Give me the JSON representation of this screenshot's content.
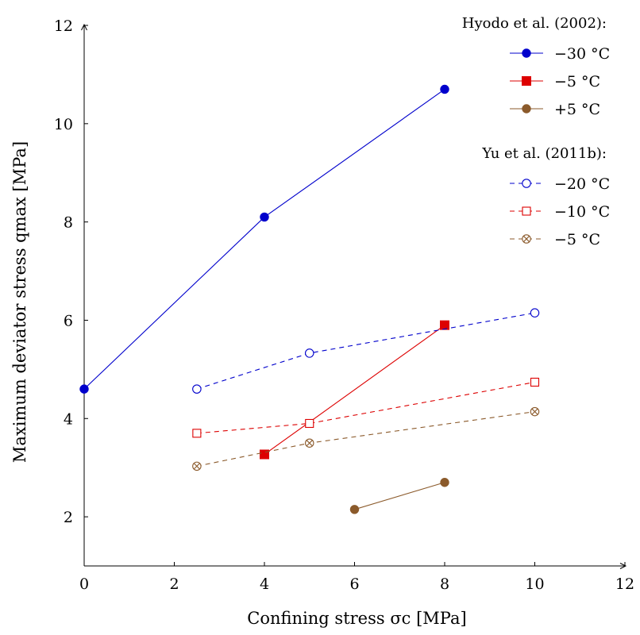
{
  "chart_data": {
    "type": "line",
    "xlabel": "Confining stress σc [MPa]",
    "ylabel": "Maximum deviator stress qmax [MPa]",
    "xlim": [
      0,
      12
    ],
    "ylim": [
      1,
      12
    ],
    "x_ticks": [
      "0",
      "2",
      "4",
      "6",
      "8",
      "10",
      "12"
    ],
    "y_ticks": [
      "2",
      "4",
      "6",
      "8",
      "10",
      "12"
    ],
    "grid": false,
    "legend_position": "top-right",
    "legend_groups": [
      {
        "title": "Hyodo et al. (2002):",
        "series": [
          0,
          1,
          2
        ]
      },
      {
        "title": "Yu et al. (2011b):",
        "series": [
          3,
          4,
          5
        ]
      }
    ],
    "series": [
      {
        "name": "−30 °C",
        "color": "#0000cc",
        "dashed": false,
        "marker": "filled-circle",
        "x": [
          0,
          4,
          8
        ],
        "y": [
          4.6,
          8.1,
          10.7
        ]
      },
      {
        "name": "−5 °C",
        "color": "#dd0000",
        "dashed": false,
        "marker": "filled-square",
        "x": [
          4,
          8
        ],
        "y": [
          3.27,
          5.9
        ]
      },
      {
        "name": "+5 °C",
        "color": "#8b5a2b",
        "dashed": false,
        "marker": "filled-circle",
        "x": [
          6,
          8
        ],
        "y": [
          2.15,
          2.7
        ]
      },
      {
        "name": "−20 °C",
        "color": "#0000cc",
        "dashed": true,
        "marker": "open-circle",
        "x": [
          2.5,
          5,
          10
        ],
        "y": [
          4.6,
          5.33,
          6.15
        ]
      },
      {
        "name": "−10 °C",
        "color": "#dd0000",
        "dashed": true,
        "marker": "open-square",
        "x": [
          2.5,
          5,
          10
        ],
        "y": [
          3.7,
          3.9,
          4.74
        ]
      },
      {
        "name": "−5 °C",
        "color": "#8b5a2b",
        "dashed": true,
        "marker": "otimes",
        "x": [
          2.5,
          5,
          10
        ],
        "y": [
          3.03,
          3.5,
          4.14
        ]
      }
    ]
  }
}
